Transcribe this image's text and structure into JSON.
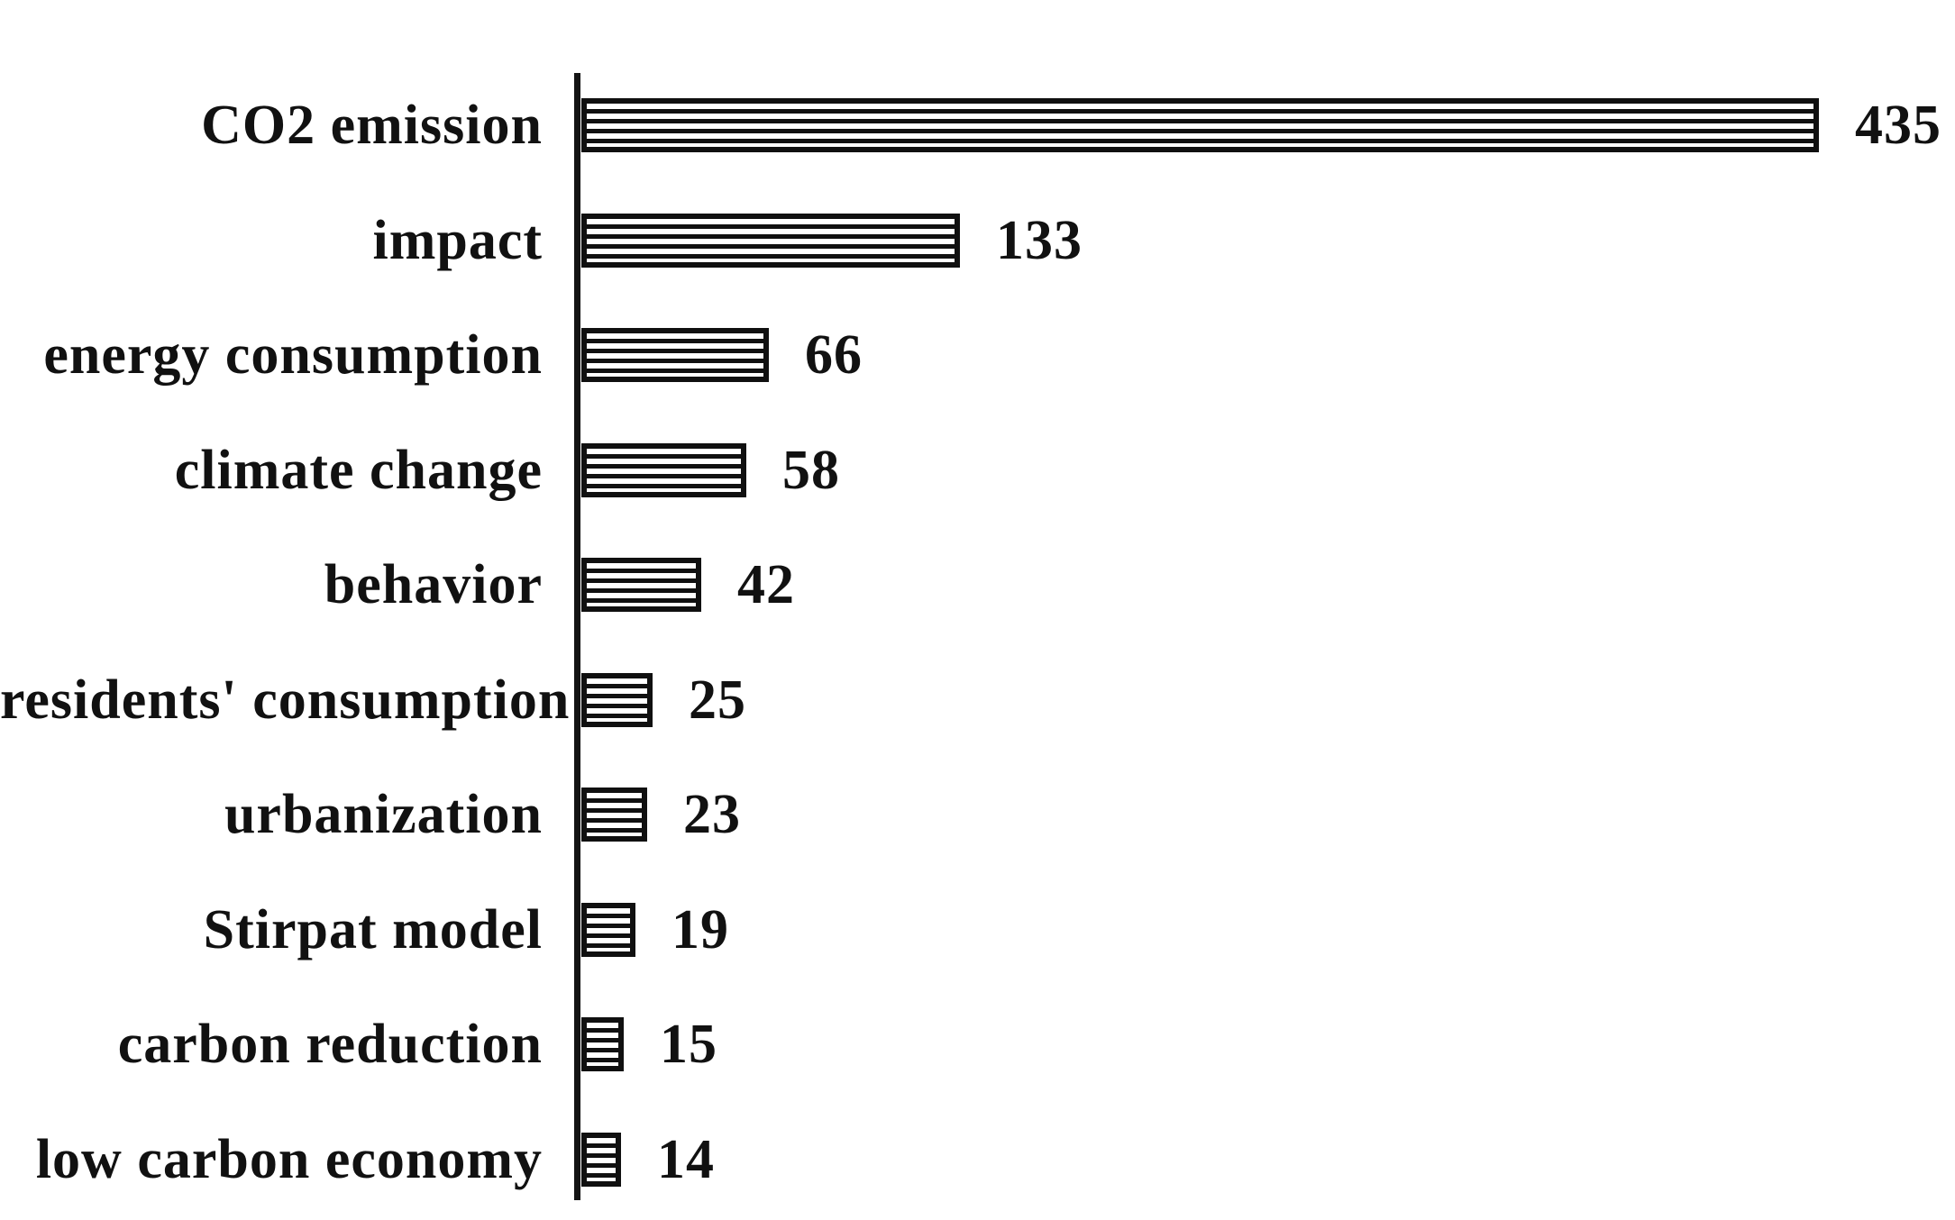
{
  "chart_data": {
    "type": "bar",
    "orientation": "horizontal",
    "title": "",
    "xlabel": "",
    "ylabel": "",
    "categories": [
      "CO2 emission",
      "impact",
      "energy consumption",
      "climate change",
      "behavior",
      "residents' consumption",
      "urbanization",
      "Stirpat model",
      "carbon reduction",
      "low carbon economy"
    ],
    "values": [
      435,
      133,
      66,
      58,
      42,
      25,
      23,
      19,
      15,
      14
    ],
    "xlim": [
      0,
      440
    ],
    "grid": false,
    "legend": "none",
    "value_labels_shown": true,
    "bar_fill_pattern": "horizontal-stripes",
    "bar_color": "#101010",
    "bar_background": "#ffffff",
    "axis_line_color": "#141414",
    "text_color": "#111111",
    "background_color": "#ffffff"
  }
}
